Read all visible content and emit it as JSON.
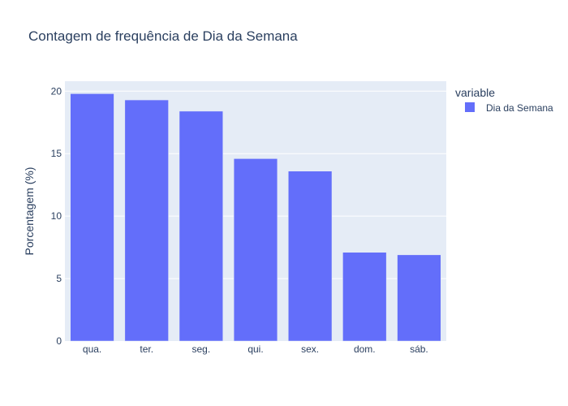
{
  "chart_data": {
    "type": "bar",
    "title": "Contagem de frequência de Dia da Semana",
    "xlabel": "",
    "ylabel": "Porcentagem (%)",
    "categories": [
      "qua.",
      "ter.",
      "seg.",
      "qui.",
      "sex.",
      "dom.",
      "sáb."
    ],
    "series": [
      {
        "name": "Dia da Semana",
        "values": [
          19.8,
          19.3,
          18.4,
          14.6,
          13.6,
          7.1,
          6.9
        ]
      }
    ],
    "ylim": [
      0,
      20.8
    ],
    "yticks": [
      0,
      5,
      10,
      15,
      20
    ],
    "grid": true,
    "legend": {
      "title": "variable",
      "position": "top-right"
    },
    "colors": {
      "bar": "#636efa",
      "plot_bg": "#e5ecf6",
      "grid": "#ffffff",
      "text": "#2a3f5f"
    }
  }
}
